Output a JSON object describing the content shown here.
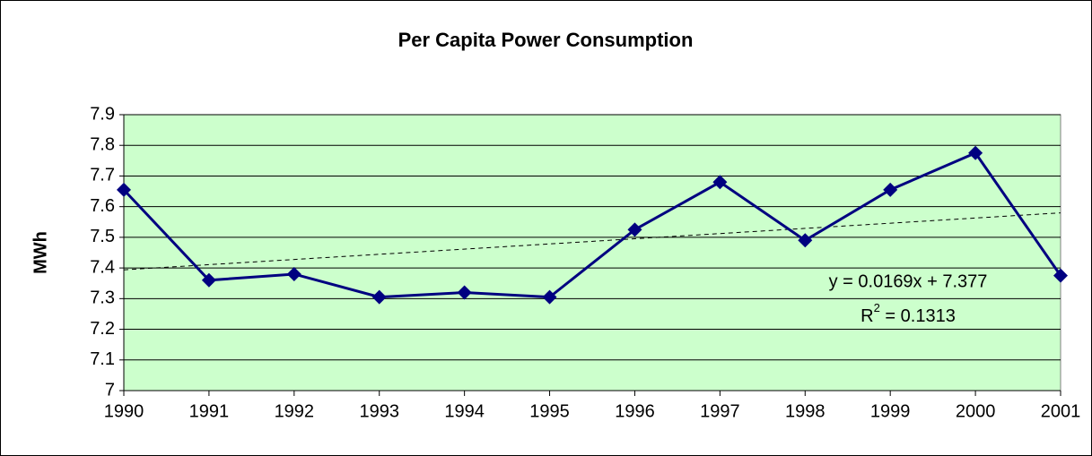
{
  "chart_data": {
    "type": "line",
    "title": "Per Capita Power Consumption",
    "y_label": "MWh",
    "categories": [
      "1990",
      "1991",
      "1992",
      "1993",
      "1994",
      "1995",
      "1996",
      "1997",
      "1998",
      "1999",
      "2000",
      "2001"
    ],
    "series": [
      {
        "name": "Per Capita Power Consumption",
        "color": "#000080",
        "values": [
          7.655,
          7.36,
          7.38,
          7.305,
          7.32,
          7.305,
          7.525,
          7.68,
          7.49,
          7.655,
          7.775,
          7.375
        ]
      }
    ],
    "ylim": [
      7,
      7.9
    ],
    "yticks": [
      7,
      7.1,
      7.2,
      7.3,
      7.4,
      7.5,
      7.6,
      7.7,
      7.8,
      7.9
    ],
    "grid": true,
    "plot_background": "#ccffcc",
    "trendline": {
      "slope": 0.0169,
      "intercept": 7.377,
      "equation": "y = 0.0169x + 7.377",
      "r_squared": {
        "symbol": "R",
        "exponent": "2",
        "value": " = 0.1313"
      }
    }
  }
}
